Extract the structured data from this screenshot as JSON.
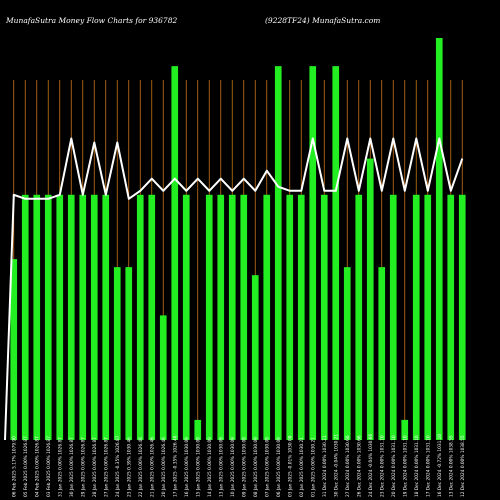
{
  "chart_data": {
    "type": "bar",
    "title_left": "MunafaSutra  Money Flow  Charts for 936782",
    "title_right": "(9228TF24) MunafaSutra.com",
    "bar_color": "#22ee22",
    "line_color": "#ffffff",
    "grid_color": "#c8741a",
    "grid": true,
    "ylim": [
      0,
      100
    ],
    "categories": [
      "06 Feb 2025 5.17% 1079.90",
      "05 Feb 2025 0.00% 1026.87",
      "04 Feb 2025 0.00% 1026.87",
      "03 Feb 2025 0.00% 1026.87",
      "31 Jan 2025 0.00% 1026.87",
      "30 Jan 2025 0.00% 1026.87",
      "29 Jan 2025 0.00% 1026.87",
      "28 Jan 2025 0.00% 1026.87",
      "27 Jan 2025 0.00% 1026.87",
      "24 Jan 2025 -0.35% 1026.87",
      "23 Jan 2025 0.39% 1030.46",
      "22 Jan 2025 0.00% 1026.46",
      "21 Jan 2025 0.00% 1026.46",
      "20 Jan 2025 0.00% 1026.46",
      "17 Jan 2025 -0.35% 1026.46",
      "16 Jan 2025 0.00% 1030.09",
      "15 Jan 2025 0.00% 1030.09",
      "14 Jan 2025 0.00% 1030.09",
      "13 Jan 2025 0.00% 1030.09",
      "10 Jan 2025 0.00% 1030.09",
      "09 Jan 2025 0.00% 1030.09",
      "08 Jan 2025 0.00% 1030.09",
      "07 Jan 2025 0.00% 1030.09",
      "06 Jan 2025 0.00% 1030.09",
      "03 Jan 2025 -0.01% 1030.09",
      "02 Jan 2025 0.00% 1030.21",
      "01 Jan 2025 0.00% 1030.21",
      "31 Dec 2024 0.00% 1030.21",
      "30 Dec 2024 -0.04% 1030.21",
      "27 Dec 2024 0.00% 1030.66",
      "26 Dec 2024 0.00% 1030.66",
      "24 Dec 2024 -0.04% 1030.66",
      "23 Dec 2024 0.00% 1031.10",
      "20 Dec 2024 0.00% 1031.10",
      "19 Dec 2024 0.00% 1031.10",
      "18 Dec 2024 0.00% 1031.10",
      "17 Dec 2024 0.00% 1031.10",
      "16 Dec 2024 -0.72% 1031.10",
      "13 Dec 2024 0.00% 1038.55",
      "12 Dec 2024 0.00% 1038.55"
    ],
    "values": [
      45,
      61,
      61,
      61,
      61,
      61,
      61,
      61,
      61,
      43,
      43,
      61,
      61,
      31,
      93,
      61,
      5,
      61,
      61,
      61,
      61,
      41,
      61,
      93,
      61,
      61,
      93,
      61,
      93,
      43,
      61,
      70,
      43,
      61,
      5,
      61,
      61,
      100,
      61,
      61
    ],
    "line_values": [
      61,
      60,
      60,
      60,
      61,
      75,
      61,
      74,
      61,
      74,
      60,
      62,
      65,
      62,
      65,
      62,
      65,
      62,
      65,
      62,
      65,
      62,
      67,
      63,
      62,
      62,
      75,
      62,
      62,
      75,
      62,
      75,
      62,
      75,
      62,
      75,
      62,
      75,
      62,
      70
    ]
  }
}
